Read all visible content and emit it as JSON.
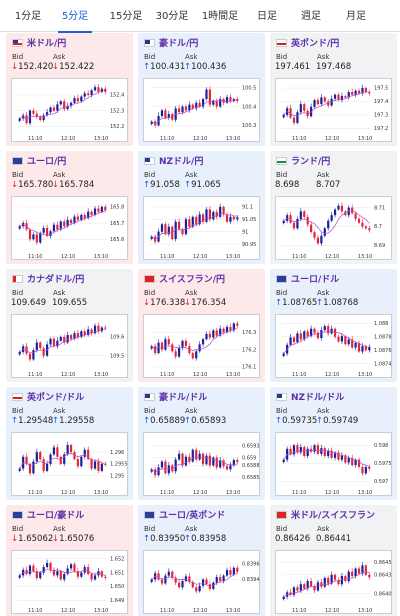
{
  "tabs": [
    {
      "label": "1分足",
      "active": false
    },
    {
      "label": "5分足",
      "active": true
    },
    {
      "label": "15分足",
      "active": false
    },
    {
      "label": "30分足",
      "active": false
    },
    {
      "label": "1時間足",
      "active": false
    },
    {
      "label": "日足",
      "active": false
    },
    {
      "label": "週足",
      "active": false
    },
    {
      "label": "月足",
      "active": false
    }
  ],
  "labels": {
    "bid": "Bid",
    "ask": "Ask"
  },
  "colors": {
    "up_candle": "#1a1f9c",
    "down_candle": "#e0283a",
    "ma_line": "#b94ad1",
    "accent": "#1d5fd6"
  },
  "cards": [
    {
      "pair": "米ドル/円",
      "trend": "down",
      "arrow": "↓",
      "bid": "152.420",
      "ask": "152.422",
      "flag": "us",
      "yticks": [
        "152.4",
        "152.3",
        "152.2"
      ],
      "xticks": [
        "11:10",
        "12:10",
        "13:10"
      ],
      "closes": [
        152.25,
        152.27,
        152.22,
        152.3,
        152.28,
        152.26,
        152.24,
        152.27,
        152.29,
        152.32,
        152.3,
        152.34,
        152.36,
        152.31,
        152.33,
        152.35,
        152.38,
        152.36,
        152.39,
        152.41,
        152.4,
        152.43,
        152.45,
        152.42,
        152.44,
        152.42
      ],
      "range": [
        152.17,
        152.47
      ]
    },
    {
      "pair": "豪ドル/円",
      "trend": "up",
      "arrow": "↑",
      "bid": "100.431",
      "ask": "100.436",
      "flag": "au",
      "yticks": [
        "100.5",
        "100.4",
        "100.3"
      ],
      "xticks": [
        "11:10",
        "12:10",
        "13:10"
      ],
      "closes": [
        100.32,
        100.3,
        100.35,
        100.38,
        100.34,
        100.36,
        100.33,
        100.39,
        100.37,
        100.4,
        100.38,
        100.41,
        100.39,
        100.42,
        100.4,
        100.44,
        100.49,
        100.41,
        100.43,
        100.4,
        100.44,
        100.42,
        100.45,
        100.43,
        100.44,
        100.43
      ],
      "range": [
        100.27,
        100.52
      ]
    },
    {
      "pair": "英ポンド/円",
      "trend": "flat",
      "arrow": "",
      "bid": "197.461",
      "ask": "197.468",
      "flag": "gb",
      "yticks": [
        "197.5",
        "197.4",
        "197.3",
        "197.2"
      ],
      "xticks": [
        "11:10",
        "12:10",
        "13:10"
      ],
      "closes": [
        197.3,
        197.35,
        197.28,
        197.24,
        197.32,
        197.38,
        197.33,
        197.29,
        197.36,
        197.41,
        197.38,
        197.43,
        197.4,
        197.37,
        197.42,
        197.45,
        197.41,
        197.44,
        197.43,
        197.47,
        197.45,
        197.48,
        197.46,
        197.5,
        197.47,
        197.46
      ],
      "range": [
        197.18,
        197.53
      ]
    },
    {
      "pair": "ユーロ/円",
      "trend": "down",
      "arrow": "↓",
      "bid": "165.780",
      "ask": "165.784",
      "flag": "eu",
      "yticks": [
        "165.8",
        "165.7",
        "165.6"
      ],
      "xticks": [
        "11:10",
        "12:10",
        "13:10"
      ],
      "closes": [
        165.68,
        165.7,
        165.66,
        165.6,
        165.63,
        165.58,
        165.64,
        165.67,
        165.62,
        165.65,
        165.69,
        165.66,
        165.71,
        165.68,
        165.72,
        165.7,
        165.74,
        165.72,
        165.75,
        165.73,
        165.77,
        165.75,
        165.79,
        165.77,
        165.8,
        165.78
      ],
      "range": [
        165.54,
        165.83
      ]
    },
    {
      "pair": "NZドル/円",
      "trend": "up",
      "arrow": "↑",
      "bid": "91.058",
      "ask": "91.065",
      "flag": "nz",
      "yticks": [
        "91.1",
        "91.05",
        "91",
        "90.95"
      ],
      "xticks": [
        "11:10",
        "12:10",
        "13:10"
      ],
      "closes": [
        90.98,
        90.96,
        91.0,
        91.03,
        90.99,
        91.02,
        90.97,
        91.04,
        91.01,
        90.99,
        91.05,
        91.02,
        91.06,
        91.03,
        91.07,
        91.04,
        91.09,
        91.05,
        91.08,
        91.06,
        91.1,
        91.07,
        91.04,
        91.06,
        91.05,
        91.058
      ],
      "range": [
        90.93,
        91.12
      ]
    },
    {
      "pair": "ランド/円",
      "trend": "flat",
      "arrow": "",
      "bid": "8.698",
      "ask": "8.707",
      "flag": "za",
      "yticks": [
        "8.71",
        "8.7",
        "8.69"
      ],
      "xticks": [
        "11:10",
        "12:10",
        "13:10"
      ],
      "closes": [
        8.703,
        8.706,
        8.702,
        8.699,
        8.704,
        8.708,
        8.705,
        8.701,
        8.697,
        8.694,
        8.691,
        8.695,
        8.699,
        8.703,
        8.706,
        8.709,
        8.711,
        8.708,
        8.706,
        8.71,
        8.707,
        8.704,
        8.702,
        8.7,
        8.699,
        8.698
      ],
      "range": [
        8.688,
        8.713
      ]
    },
    {
      "pair": "カナダドル/円",
      "trend": "flat",
      "arrow": "",
      "bid": "109.649",
      "ask": "109.655",
      "flag": "ca",
      "yticks": [
        "109.6",
        "109.5"
      ],
      "xticks": [
        "11:10",
        "12:10",
        "13:10"
      ],
      "closes": [
        109.52,
        109.55,
        109.51,
        109.48,
        109.53,
        109.57,
        109.54,
        109.5,
        109.56,
        109.59,
        109.55,
        109.58,
        109.6,
        109.57,
        109.61,
        109.59,
        109.62,
        109.6,
        109.63,
        109.61,
        109.64,
        109.62,
        109.66,
        109.63,
        109.65,
        109.649
      ],
      "range": [
        109.44,
        109.69
      ]
    },
    {
      "pair": "スイスフラン/円",
      "trend": "down",
      "arrow": "↓",
      "bid": "176.338",
      "ask": "176.354",
      "flag": "ch",
      "yticks": [
        "176.3",
        "176.2",
        "176.1"
      ],
      "xticks": [
        "11:10",
        "12:10",
        "13:10"
      ],
      "closes": [
        176.22,
        176.18,
        176.24,
        176.2,
        176.26,
        176.23,
        176.19,
        176.16,
        176.21,
        176.25,
        176.22,
        176.18,
        176.15,
        176.19,
        176.23,
        176.26,
        176.29,
        176.27,
        176.31,
        176.28,
        176.32,
        176.3,
        176.33,
        176.31,
        176.35,
        176.338
      ],
      "range": [
        176.1,
        176.37
      ]
    },
    {
      "pair": "ユーロ/ドル",
      "trend": "up",
      "arrow": "↑",
      "bid": "1.08765",
      "ask": "1.08768",
      "flag": "eu",
      "yticks": [
        "1.088",
        "1.0878",
        "1.0876",
        "1.0874"
      ],
      "xticks": [
        "11:10",
        "12:10",
        "13:10"
      ],
      "closes": [
        1.08755,
        1.08768,
        1.08779,
        1.08772,
        1.08785,
        1.08776,
        1.08788,
        1.08781,
        1.08792,
        1.08786,
        1.08778,
        1.0879,
        1.08796,
        1.08785,
        1.08792,
        1.0878,
        1.08773,
        1.08781,
        1.08769,
        1.08776,
        1.08764,
        1.08771,
        1.08758,
        1.08766,
        1.0876,
        1.08765
      ],
      "range": [
        1.08735,
        1.08805
      ]
    },
    {
      "pair": "英ポンド/ドル",
      "trend": "up",
      "arrow": "↑",
      "bid": "1.29548",
      "ask": "1.29558",
      "flag": "gb",
      "yticks": [
        "1.296",
        "1.2955",
        "1.295"
      ],
      "xticks": [
        "11:10",
        "12:10",
        "13:10"
      ],
      "closes": [
        1.2953,
        1.2958,
        1.2955,
        1.2951,
        1.2956,
        1.296,
        1.2957,
        1.2952,
        1.2955,
        1.2959,
        1.2962,
        1.2958,
        1.2955,
        1.2959,
        1.2963,
        1.296,
        1.2957,
        1.2954,
        1.2958,
        1.2961,
        1.2957,
        1.2953,
        1.2956,
        1.2952,
        1.2955,
        1.29548
      ],
      "range": [
        1.2946,
        1.2966
      ]
    },
    {
      "pair": "豪ドル/ドル",
      "trend": "up",
      "arrow": "↑",
      "bid": "0.65889",
      "ask": "0.65893",
      "flag": "au",
      "yticks": [
        "0.6593",
        "0.659",
        "0.6588",
        "0.6585"
      ],
      "xticks": [
        "11:10",
        "12:10",
        "13:10"
      ],
      "closes": [
        0.6587,
        0.65855,
        0.65875,
        0.6589,
        0.6586,
        0.6588,
        0.65865,
        0.65895,
        0.6591,
        0.6588,
        0.65902,
        0.6589,
        0.6592,
        0.65895,
        0.6591,
        0.65883,
        0.65905,
        0.6588,
        0.659,
        0.65875,
        0.65893,
        0.65878,
        0.6587,
        0.6588,
        0.65894,
        0.65889
      ],
      "range": [
        0.6583,
        0.6595
      ]
    },
    {
      "pair": "NZドル/ドル",
      "trend": "up",
      "arrow": "↑",
      "bid": "0.59735",
      "ask": "0.59749",
      "flag": "nz",
      "yticks": [
        "0.598",
        "0.5975",
        "0.597"
      ],
      "xticks": [
        "11:10",
        "12:10",
        "13:10"
      ],
      "closes": [
        0.5976,
        0.5979,
        0.59775,
        0.598,
        0.5978,
        0.59795,
        0.5977,
        0.5979,
        0.59782,
        0.598,
        0.59776,
        0.59792,
        0.5977,
        0.59785,
        0.59765,
        0.5978,
        0.5976,
        0.59772,
        0.59752,
        0.59765,
        0.59745,
        0.5976,
        0.5974,
        0.59722,
        0.5974,
        0.59735
      ],
      "range": [
        0.5969,
        0.5982
      ]
    },
    {
      "pair": "ユーロ/豪ドル",
      "trend": "down",
      "arrow": "↓",
      "bid": "1.65062",
      "ask": "1.65076",
      "flag": "eu",
      "yticks": [
        "1.652",
        "1.651",
        "1.650",
        "1.649"
      ],
      "xticks": [
        "11:10",
        "12:10",
        "13:10"
      ],
      "closes": [
        1.6508,
        1.6512,
        1.6509,
        1.6515,
        1.6511,
        1.6506,
        1.651,
        1.6514,
        1.6517,
        1.6512,
        1.6508,
        1.6511,
        1.6505,
        1.6509,
        1.6513,
        1.6516,
        1.6511,
        1.6507,
        1.651,
        1.6514,
        1.6509,
        1.6505,
        1.6508,
        1.6511,
        1.6507,
        1.65062
      ],
      "range": [
        1.6488,
        1.6522
      ]
    },
    {
      "pair": "ユーロ/英ポンド",
      "trend": "up",
      "arrow": "↑",
      "bid": "0.83950",
      "ask": "0.83958",
      "flag": "eu",
      "yticks": [
        "0.8396",
        "0.8394"
      ],
      "xticks": [
        "11:10",
        "12:10",
        "13:10"
      ],
      "closes": [
        0.8394,
        0.83948,
        0.8394,
        0.83935,
        0.83945,
        0.8395,
        0.83942,
        0.83936,
        0.8393,
        0.83938,
        0.83944,
        0.83937,
        0.8393,
        0.83925,
        0.83932,
        0.8394,
        0.83934,
        0.83928,
        0.83936,
        0.83943,
        0.83938,
        0.83945,
        0.83952,
        0.83946,
        0.83955,
        0.8395
      ],
      "range": [
        0.8391,
        0.8397
      ]
    },
    {
      "pair": "米ドル/スイスフラン",
      "trend": "flat",
      "arrow": "",
      "bid": "0.86426",
      "ask": "0.86441",
      "flag": "ch",
      "yticks": [
        "0.8645",
        "0.8643",
        "0.8640"
      ],
      "xticks": [
        "11:10",
        "12:10",
        "13:10"
      ],
      "closes": [
        0.86395,
        0.86402,
        0.86398,
        0.8641,
        0.86405,
        0.86415,
        0.86408,
        0.8642,
        0.86412,
        0.86405,
        0.86418,
        0.86411,
        0.86425,
        0.86416,
        0.8643,
        0.86422,
        0.86415,
        0.86428,
        0.8642,
        0.86435,
        0.86428,
        0.8644,
        0.86432,
        0.86445,
        0.8643,
        0.86426
      ],
      "range": [
        0.86385,
        0.8646
      ]
    }
  ]
}
